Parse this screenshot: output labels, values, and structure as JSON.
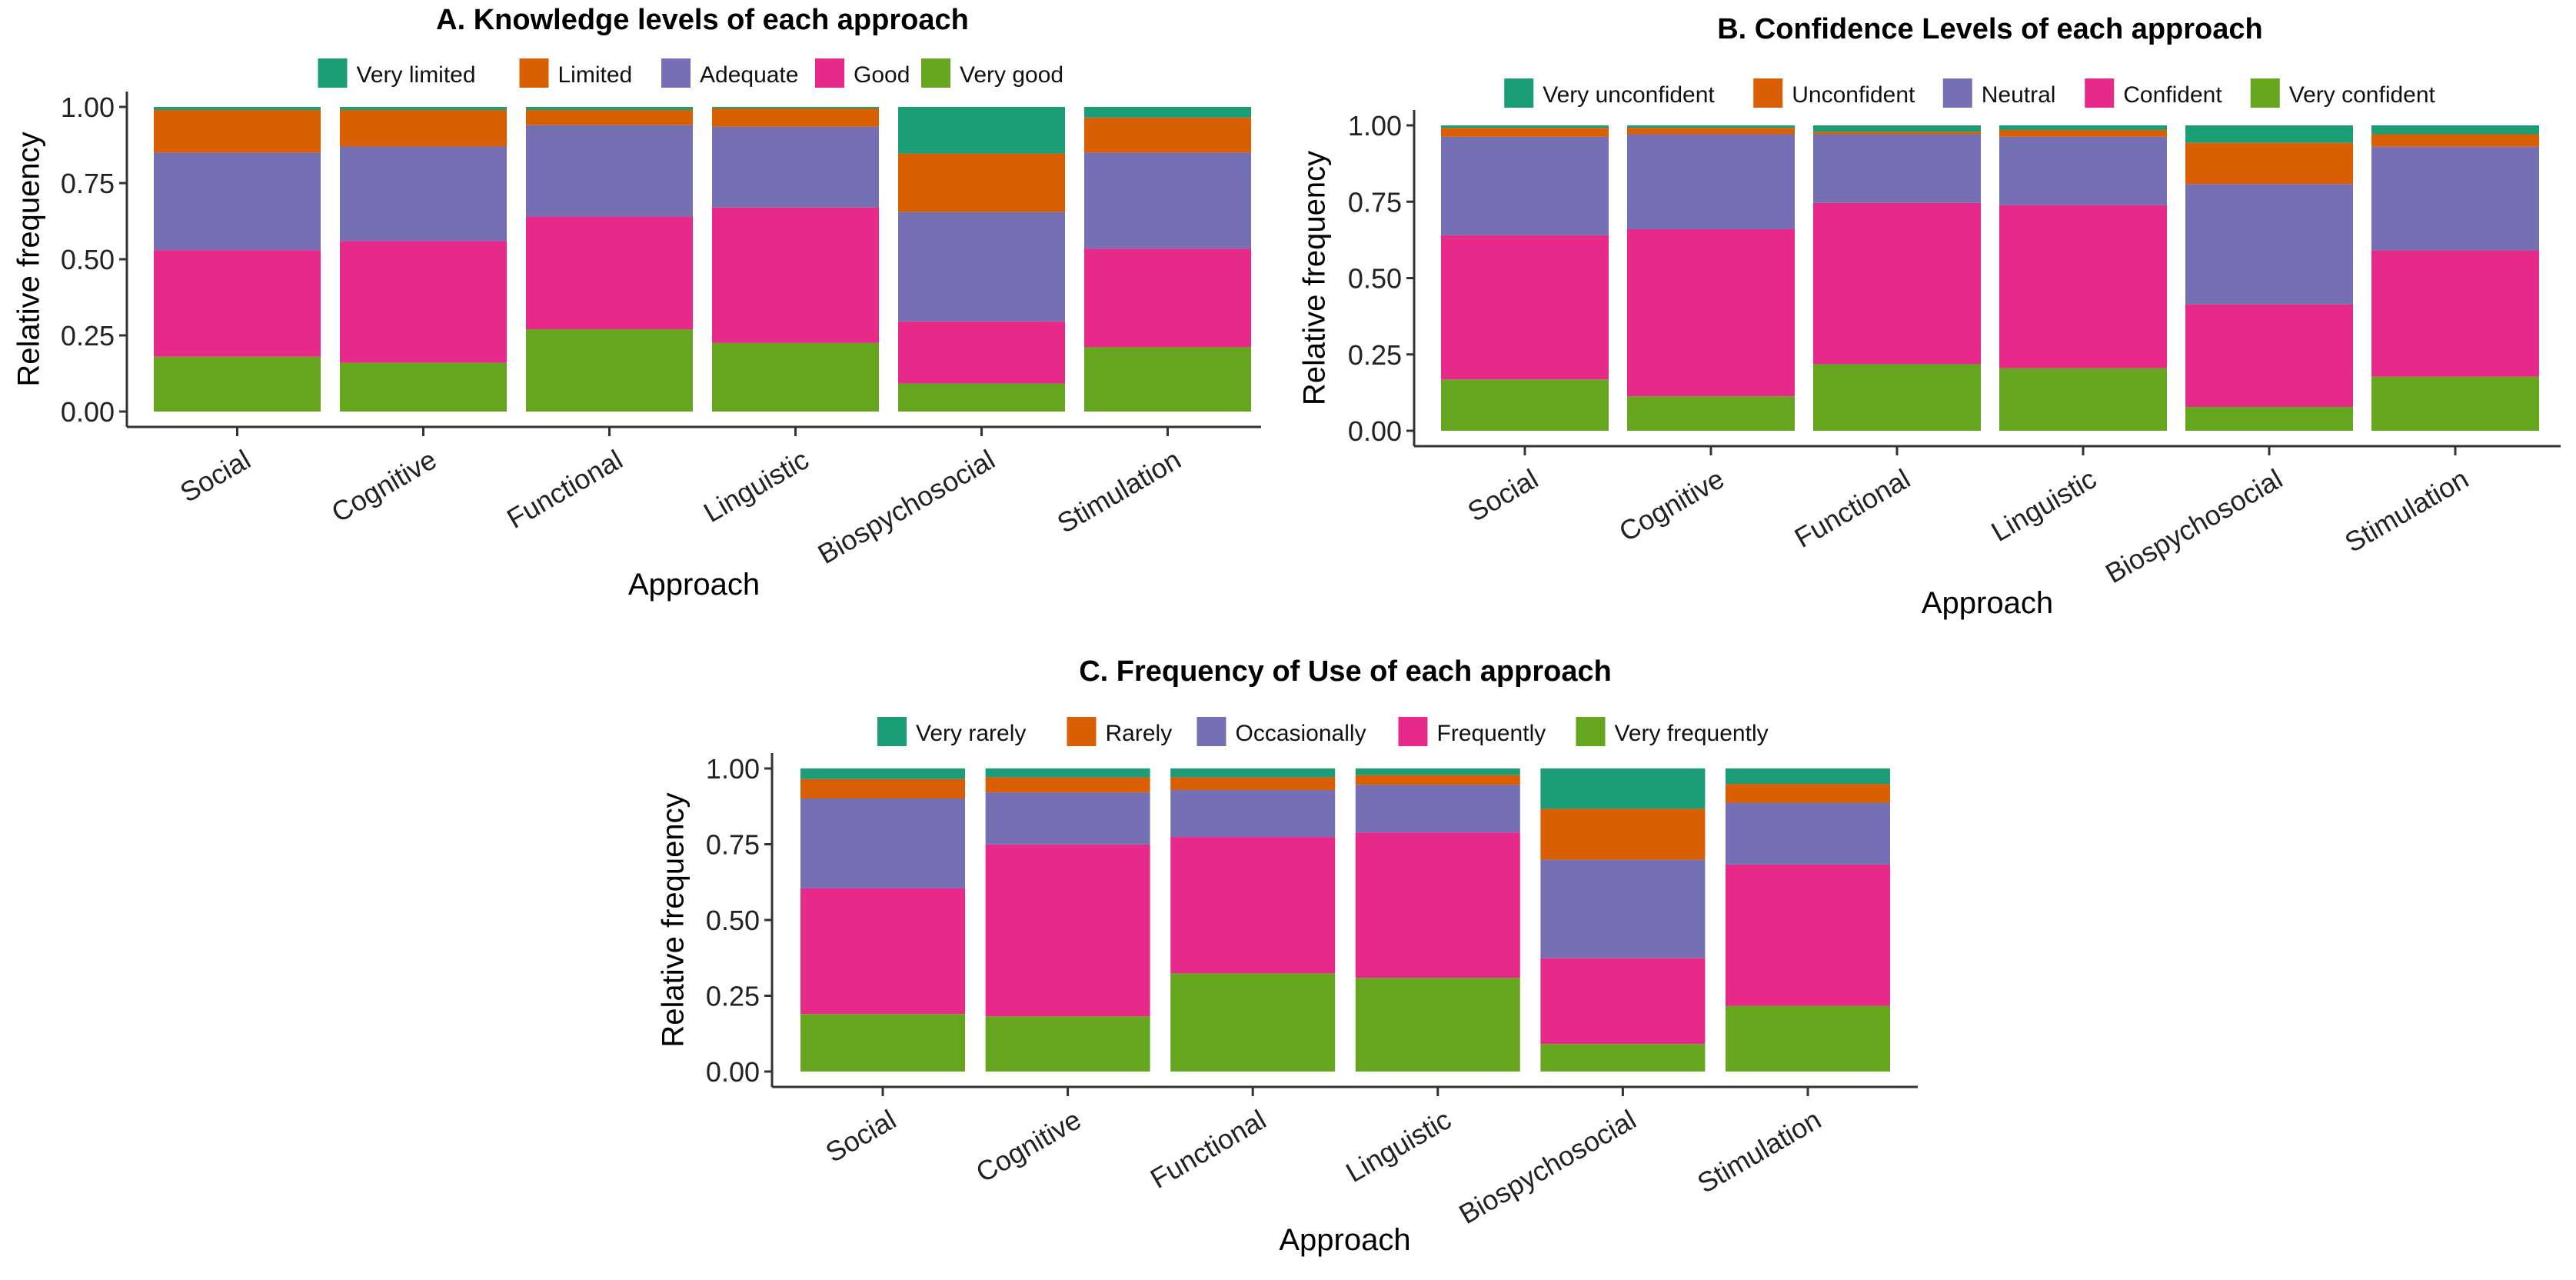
{
  "chart_data": [
    {
      "type": "bar",
      "stacked": true,
      "title": "A. Knowledge levels of each approach",
      "xlabel": "Approach",
      "ylabel": "Relative frequency",
      "ylim": [
        0,
        1
      ],
      "yticks": [
        "0.00",
        "0.25",
        "0.50",
        "0.75",
        "1.00"
      ],
      "legend_position": "top",
      "categories": [
        "Social",
        "Cognitive",
        "Functional",
        "Linguistic",
        "Biospychosocial",
        "Stimulation"
      ],
      "series": [
        {
          "name": "Very good",
          "color": "#66A61E",
          "values": [
            0.18,
            0.16,
            0.27,
            0.225,
            0.092,
            0.211
          ]
        },
        {
          "name": "Good",
          "color": "#E7298A",
          "values": [
            0.35,
            0.4,
            0.37,
            0.445,
            0.204,
            0.324
          ]
        },
        {
          "name": "Adequate",
          "color": "#7570B3",
          "values": [
            0.32,
            0.31,
            0.3,
            0.265,
            0.359,
            0.315
          ]
        },
        {
          "name": "Limited",
          "color": "#D95F02",
          "values": [
            0.14,
            0.12,
            0.05,
            0.06,
            0.192,
            0.115
          ]
        },
        {
          "name": "Very limited",
          "color": "#1B9E77",
          "values": [
            0.01,
            0.01,
            0.01,
            0.005,
            0.153,
            0.035
          ]
        }
      ]
    },
    {
      "type": "bar",
      "stacked": true,
      "title": "B. Confidence Levels of each approach",
      "xlabel": "Approach",
      "ylabel": "Relative frequency",
      "ylim": [
        0,
        1
      ],
      "yticks": [
        "0.00",
        "0.25",
        "0.50",
        "0.75",
        "1.00"
      ],
      "legend_position": "top",
      "categories": [
        "Social",
        "Cognitive",
        "Functional",
        "Linguistic",
        "Biospychosocial",
        "Stimulation"
      ],
      "series": [
        {
          "name": "Very confident",
          "color": "#66A61E",
          "values": [
            0.168,
            0.113,
            0.218,
            0.205,
            0.078,
            0.177
          ]
        },
        {
          "name": "Confident",
          "color": "#E7298A",
          "values": [
            0.472,
            0.547,
            0.528,
            0.534,
            0.336,
            0.414
          ]
        },
        {
          "name": "Neutral",
          "color": "#7570B3",
          "values": [
            0.323,
            0.311,
            0.225,
            0.224,
            0.394,
            0.339
          ]
        },
        {
          "name": "Unconfident",
          "color": "#D95F02",
          "values": [
            0.029,
            0.021,
            0.008,
            0.022,
            0.135,
            0.041
          ]
        },
        {
          "name": "Very unconfident",
          "color": "#1B9E77",
          "values": [
            0.008,
            0.008,
            0.021,
            0.015,
            0.057,
            0.029
          ]
        }
      ]
    },
    {
      "type": "bar",
      "stacked": true,
      "title": "C. Frequency of Use of each approach",
      "xlabel": "Approach",
      "ylabel": "Relative frequency",
      "ylim": [
        0,
        1
      ],
      "yticks": [
        "0.00",
        "0.25",
        "0.50",
        "0.75",
        "1.00"
      ],
      "legend_position": "top",
      "categories": [
        "Social",
        "Cognitive",
        "Functional",
        "Linguistic",
        "Biospychosocial",
        "Stimulation"
      ],
      "series": [
        {
          "name": "Very frequently",
          "color": "#66A61E",
          "values": [
            0.19,
            0.182,
            0.324,
            0.309,
            0.091,
            0.217
          ]
        },
        {
          "name": "Frequently",
          "color": "#E7298A",
          "values": [
            0.415,
            0.567,
            0.45,
            0.48,
            0.283,
            0.466
          ]
        },
        {
          "name": "Occasionally",
          "color": "#7570B3",
          "values": [
            0.296,
            0.172,
            0.155,
            0.157,
            0.325,
            0.204
          ]
        },
        {
          "name": "Rarely",
          "color": "#D95F02",
          "values": [
            0.064,
            0.05,
            0.042,
            0.032,
            0.168,
            0.062
          ]
        },
        {
          "name": "Very rarely",
          "color": "#1B9E77",
          "values": [
            0.035,
            0.029,
            0.029,
            0.022,
            0.133,
            0.051
          ]
        }
      ]
    }
  ]
}
